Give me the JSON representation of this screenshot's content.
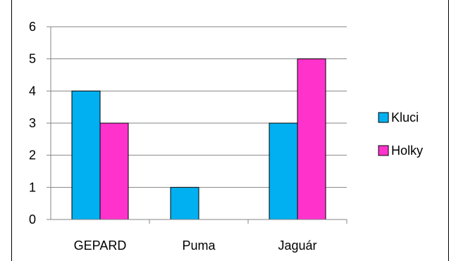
{
  "chart_data": {
    "type": "bar",
    "categories": [
      "GEPARD",
      "Puma",
      "Jaguár"
    ],
    "series": [
      {
        "name": "Kluci",
        "values": [
          4,
          1,
          3
        ],
        "color": "#00b0f0"
      },
      {
        "name": "Holky",
        "values": [
          3,
          0,
          5
        ],
        "color": "#ff33cc"
      }
    ],
    "ylim": [
      0,
      6
    ],
    "yticks": [
      "0",
      "1",
      "2",
      "3",
      "4",
      "5",
      "6"
    ],
    "grid": true,
    "legend": "right"
  }
}
